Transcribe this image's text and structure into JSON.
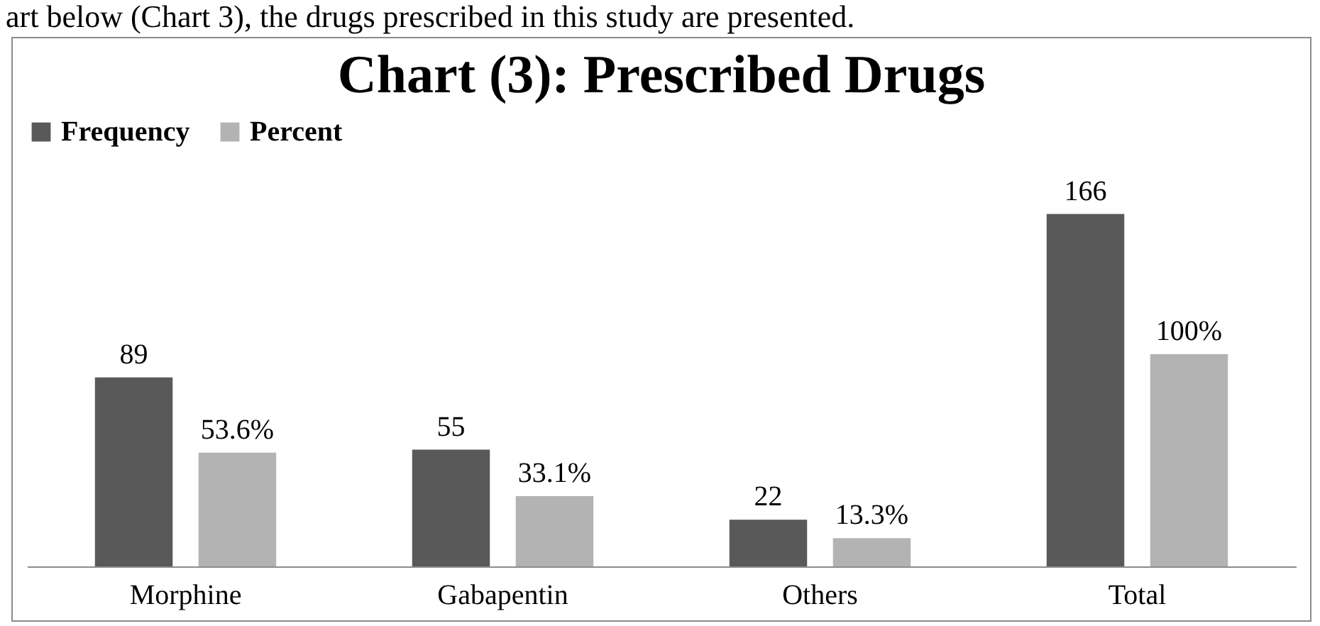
{
  "chart_data": {
    "type": "bar",
    "title": "Chart (3): Prescribed Drugs",
    "annotations": [
      "art below (Chart 3), the drugs prescribed in this study are presented."
    ],
    "categories": [
      "Morphine",
      "Gabapentin",
      "Others",
      "Total"
    ],
    "series": [
      {
        "name": "Frequency",
        "color": "#595959",
        "values": [
          89,
          55,
          22,
          166
        ],
        "value_labels": [
          "89",
          "55",
          "22",
          "166"
        ]
      },
      {
        "name": "Percent",
        "color": "#b3b3b3",
        "values": [
          53.6,
          33.1,
          13.3,
          100
        ],
        "value_labels": [
          "53.6%",
          "33.1%",
          "13.3%",
          "100%"
        ]
      }
    ],
    "legend": "top",
    "grid": false
  }
}
